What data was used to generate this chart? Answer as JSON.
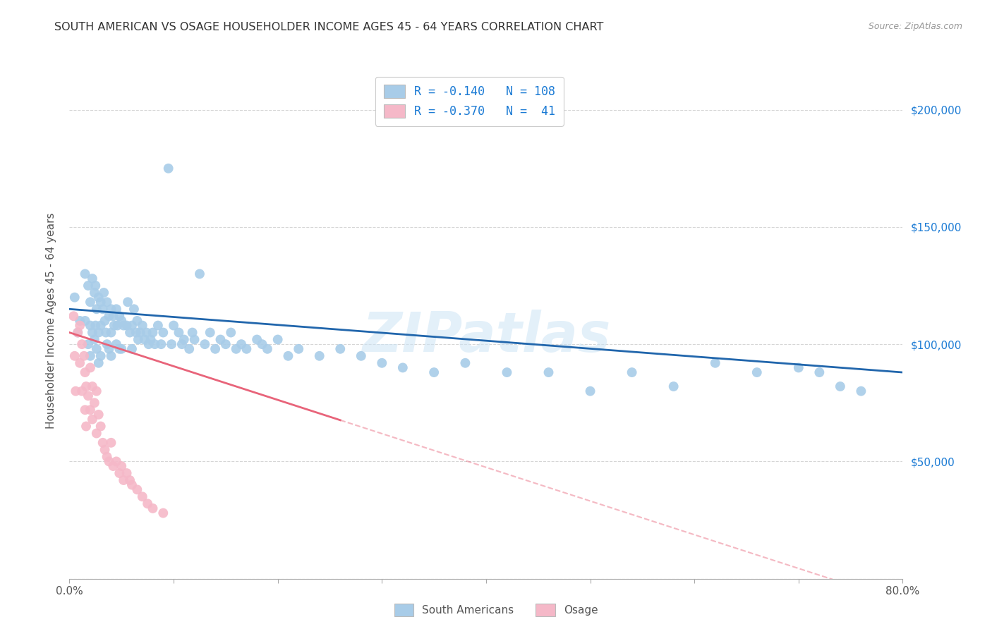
{
  "title": "SOUTH AMERICAN VS OSAGE HOUSEHOLDER INCOME AGES 45 - 64 YEARS CORRELATION CHART",
  "source": "Source: ZipAtlas.com",
  "ylabel_label": "Householder Income Ages 45 - 64 years",
  "xlim": [
    0.0,
    0.8
  ],
  "ylim": [
    0,
    220000
  ],
  "blue_color": "#a8cce8",
  "pink_color": "#f5b8c8",
  "blue_line_color": "#2166ac",
  "pink_line_color": "#e8647a",
  "watermark": "ZIPatlas",
  "background_color": "#ffffff",
  "legend_blue_R": "-0.140",
  "legend_blue_N": "108",
  "legend_pink_R": "-0.370",
  "legend_pink_N": " 41",
  "legend_blue_label": "South Americans",
  "legend_pink_label": "Osage",
  "blue_scatter_x": [
    0.005,
    0.008,
    0.01,
    0.015,
    0.015,
    0.018,
    0.018,
    0.02,
    0.02,
    0.02,
    0.022,
    0.022,
    0.024,
    0.024,
    0.025,
    0.025,
    0.026,
    0.026,
    0.028,
    0.028,
    0.028,
    0.03,
    0.03,
    0.03,
    0.032,
    0.033,
    0.034,
    0.035,
    0.036,
    0.036,
    0.038,
    0.038,
    0.04,
    0.04,
    0.04,
    0.042,
    0.043,
    0.045,
    0.045,
    0.046,
    0.048,
    0.048,
    0.05,
    0.05,
    0.052,
    0.055,
    0.056,
    0.058,
    0.06,
    0.06,
    0.062,
    0.064,
    0.065,
    0.066,
    0.068,
    0.07,
    0.072,
    0.074,
    0.076,
    0.078,
    0.08,
    0.082,
    0.085,
    0.088,
    0.09,
    0.095,
    0.098,
    0.1,
    0.105,
    0.108,
    0.11,
    0.115,
    0.118,
    0.12,
    0.125,
    0.13,
    0.135,
    0.14,
    0.145,
    0.15,
    0.155,
    0.16,
    0.165,
    0.17,
    0.18,
    0.185,
    0.19,
    0.2,
    0.21,
    0.22,
    0.24,
    0.26,
    0.28,
    0.3,
    0.32,
    0.35,
    0.38,
    0.42,
    0.46,
    0.5,
    0.54,
    0.58,
    0.62,
    0.66,
    0.7,
    0.72,
    0.74,
    0.76
  ],
  "blue_scatter_y": [
    120000,
    105000,
    110000,
    130000,
    110000,
    125000,
    100000,
    118000,
    108000,
    95000,
    128000,
    105000,
    122000,
    102000,
    125000,
    108000,
    115000,
    98000,
    120000,
    105000,
    92000,
    118000,
    108000,
    95000,
    115000,
    122000,
    110000,
    105000,
    118000,
    100000,
    112000,
    98000,
    115000,
    105000,
    95000,
    112000,
    108000,
    115000,
    100000,
    108000,
    112000,
    98000,
    110000,
    98000,
    108000,
    108000,
    118000,
    105000,
    108000,
    98000,
    115000,
    105000,
    110000,
    102000,
    105000,
    108000,
    102000,
    105000,
    100000,
    102000,
    105000,
    100000,
    108000,
    100000,
    105000,
    175000,
    100000,
    108000,
    105000,
    100000,
    102000,
    98000,
    105000,
    102000,
    130000,
    100000,
    105000,
    98000,
    102000,
    100000,
    105000,
    98000,
    100000,
    98000,
    102000,
    100000,
    98000,
    102000,
    95000,
    98000,
    95000,
    98000,
    95000,
    92000,
    90000,
    88000,
    92000,
    88000,
    88000,
    80000,
    88000,
    82000,
    92000,
    88000,
    90000,
    88000,
    82000,
    80000
  ],
  "pink_scatter_x": [
    0.004,
    0.005,
    0.006,
    0.008,
    0.01,
    0.01,
    0.012,
    0.012,
    0.014,
    0.015,
    0.015,
    0.016,
    0.016,
    0.018,
    0.02,
    0.02,
    0.022,
    0.022,
    0.024,
    0.026,
    0.026,
    0.028,
    0.03,
    0.032,
    0.034,
    0.036,
    0.038,
    0.04,
    0.042,
    0.045,
    0.048,
    0.05,
    0.052,
    0.055,
    0.058,
    0.06,
    0.065,
    0.07,
    0.075,
    0.08,
    0.09
  ],
  "pink_scatter_y": [
    112000,
    95000,
    80000,
    105000,
    108000,
    92000,
    100000,
    80000,
    95000,
    88000,
    72000,
    82000,
    65000,
    78000,
    90000,
    72000,
    82000,
    68000,
    75000,
    80000,
    62000,
    70000,
    65000,
    58000,
    55000,
    52000,
    50000,
    58000,
    48000,
    50000,
    45000,
    48000,
    42000,
    45000,
    42000,
    40000,
    38000,
    35000,
    32000,
    30000,
    28000
  ]
}
